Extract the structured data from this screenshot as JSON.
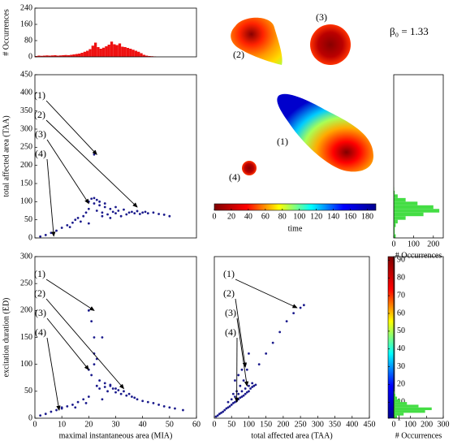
{
  "chart_data": [
    {
      "type": "histogram",
      "orientation": "vertical",
      "ylabel": "# Occurrences",
      "xlim": [
        0,
        60
      ],
      "ylim": [
        0,
        240
      ],
      "yticks": [
        0,
        80,
        160,
        240
      ],
      "color": "#ee1111",
      "bins": [
        0,
        1,
        2,
        3,
        4,
        5,
        6,
        7,
        8,
        9,
        10,
        11,
        12,
        13,
        14,
        15,
        16,
        17,
        18,
        19,
        20,
        21,
        22,
        23,
        24,
        25,
        26,
        27,
        28,
        29,
        30,
        31,
        32,
        33,
        34,
        35,
        36,
        37,
        38,
        39,
        40,
        41,
        42,
        43,
        44,
        45
      ],
      "values": [
        4,
        6,
        5,
        6,
        7,
        6,
        7,
        8,
        6,
        7,
        8,
        9,
        8,
        10,
        12,
        14,
        16,
        20,
        25,
        30,
        38,
        55,
        70,
        48,
        40,
        45,
        52,
        60,
        75,
        62,
        58,
        66,
        50,
        48,
        44,
        40,
        35,
        30,
        25,
        18,
        10,
        6,
        4,
        3,
        2
      ]
    },
    {
      "type": "scatter",
      "ylabel": "total affected area (TAA)",
      "xlim": [
        0,
        60
      ],
      "ylim": [
        0,
        450
      ],
      "yticks": [
        0,
        50,
        100,
        150,
        200,
        250,
        300,
        350,
        400,
        450
      ],
      "color": "#1a1a8c",
      "annotations": [
        "(1)",
        "(2)",
        "(3)",
        "(4)"
      ],
      "x": [
        2,
        4,
        6,
        8,
        10,
        12,
        14,
        15,
        16,
        18,
        19,
        20,
        20,
        21,
        22,
        22,
        23,
        24,
        25,
        25,
        26,
        27,
        28,
        28,
        29,
        30,
        31,
        32,
        33,
        34,
        35,
        36,
        37,
        38,
        39,
        40,
        41,
        42,
        44,
        46,
        48,
        50,
        13,
        17,
        20,
        23,
        26,
        30,
        22,
        24
      ],
      "values": [
        4,
        8,
        14,
        20,
        28,
        35,
        42,
        50,
        55,
        60,
        70,
        80,
        100,
        108,
        95,
        230,
        75,
        90,
        70,
        60,
        85,
        65,
        80,
        55,
        72,
        68,
        75,
        60,
        78,
        65,
        70,
        72,
        68,
        74,
        66,
        70,
        72,
        68,
        70,
        66,
        64,
        60,
        30,
        45,
        40,
        105,
        95,
        85,
        110,
        100
      ]
    },
    {
      "type": "histogram",
      "orientation": "horizontal",
      "xlabel": "# Occurrences",
      "xlim": [
        0,
        250
      ],
      "xticks": [
        0,
        100,
        200
      ],
      "ylim": [
        0,
        450
      ],
      "color": "#44dd44",
      "bins": [
        0,
        10,
        20,
        30,
        40,
        50,
        60,
        70,
        80,
        90,
        100,
        110,
        120,
        130,
        140
      ],
      "values": [
        10,
        5,
        5,
        10,
        20,
        60,
        150,
        230,
        200,
        120,
        60,
        20,
        5,
        2
      ]
    },
    {
      "type": "image",
      "labels": [
        "(2)",
        "(3)",
        "(1)",
        "(4)"
      ],
      "annotation": "β₀ = 1.33"
    },
    {
      "type": "colorbar",
      "orientation": "horizontal",
      "label": "time",
      "lim": [
        0,
        190
      ],
      "ticks": [
        0,
        20,
        40,
        60,
        80,
        100,
        120,
        140,
        160,
        180
      ],
      "colors": [
        "#800000",
        "#ff0000",
        "#ffff00",
        "#00ffff",
        "#0000ff",
        "#00008f"
      ]
    },
    {
      "type": "scatter",
      "xlabel": "maximal instantaneous area (MIA)",
      "ylabel": "excitation duration (ED)",
      "xlim": [
        0,
        60
      ],
      "xticks": [
        0,
        10,
        20,
        30,
        40,
        50,
        60
      ],
      "ylim": [
        0,
        300
      ],
      "yticks": [
        0,
        50,
        100,
        150,
        200,
        250,
        300
      ],
      "color": "#1a1a8c",
      "annotations": [
        "(1)",
        "(2)",
        "(3)",
        "(4)"
      ],
      "x": [
        2,
        4,
        6,
        8,
        10,
        12,
        14,
        16,
        18,
        20,
        20,
        21,
        22,
        22,
        23,
        24,
        25,
        26,
        27,
        28,
        29,
        30,
        31,
        32,
        33,
        34,
        35,
        36,
        37,
        38,
        40,
        42,
        44,
        46,
        48,
        50,
        52,
        55,
        20,
        22,
        24,
        26,
        28,
        30,
        19,
        25,
        21,
        23,
        15,
        10
      ],
      "values": [
        5,
        8,
        12,
        15,
        20,
        22,
        25,
        30,
        35,
        40,
        200,
        180,
        100,
        150,
        60,
        55,
        150,
        58,
        50,
        62,
        55,
        48,
        52,
        45,
        50,
        42,
        45,
        40,
        38,
        35,
        32,
        30,
        28,
        25,
        22,
        20,
        18,
        15,
        90,
        120,
        70,
        65,
        60,
        55,
        28,
        35,
        80,
        110,
        20,
        18
      ]
    },
    {
      "type": "scatter",
      "xlabel": "total affected area (TAA)",
      "xlim": [
        0,
        450
      ],
      "xticks": [
        0,
        50,
        100,
        150,
        200,
        250,
        300,
        350,
        400,
        450
      ],
      "ylim": [
        0,
        300
      ],
      "color": "#1a1a8c",
      "annotations": [
        "(1)",
        "(2)",
        "(3)",
        "(4)"
      ],
      "x": [
        5,
        10,
        15,
        20,
        25,
        30,
        35,
        40,
        45,
        50,
        55,
        60,
        65,
        70,
        75,
        80,
        85,
        90,
        95,
        100,
        105,
        110,
        115,
        120,
        40,
        50,
        60,
        70,
        80,
        90,
        100,
        110,
        130,
        150,
        170,
        190,
        210,
        230,
        250,
        260,
        60,
        70,
        80,
        90,
        100,
        75,
        85,
        95,
        65,
        55
      ],
      "values": [
        3,
        5,
        8,
        10,
        12,
        15,
        18,
        20,
        22,
        25,
        28,
        30,
        32,
        35,
        38,
        40,
        42,
        45,
        48,
        50,
        55,
        58,
        60,
        62,
        30,
        35,
        40,
        45,
        50,
        55,
        60,
        65,
        100,
        120,
        140,
        160,
        180,
        195,
        205,
        210,
        70,
        80,
        90,
        100,
        120,
        60,
        70,
        90,
        50,
        45
      ]
    },
    {
      "type": "colorbar",
      "orientation": "vertical",
      "lim": [
        1,
        92
      ],
      "ticks": [
        1,
        10,
        20,
        30,
        40,
        50,
        60,
        70,
        80,
        90
      ],
      "colors": [
        "#00008f",
        "#0000ff",
        "#00ffff",
        "#ffff00",
        "#ff0000",
        "#800000"
      ]
    },
    {
      "type": "histogram",
      "orientation": "horizontal",
      "xlabel": "# Occurrences",
      "xlim": [
        0,
        300
      ],
      "xticks": [
        0,
        100,
        200,
        300
      ],
      "ylim": [
        0,
        300
      ],
      "color": "#44dd44",
      "bins": [
        0,
        5,
        10,
        15,
        20,
        25,
        30,
        35,
        40,
        45,
        50,
        55,
        60
      ],
      "values": [
        20,
        60,
        190,
        230,
        150,
        80,
        40,
        20,
        10,
        5,
        3,
        2
      ]
    }
  ]
}
